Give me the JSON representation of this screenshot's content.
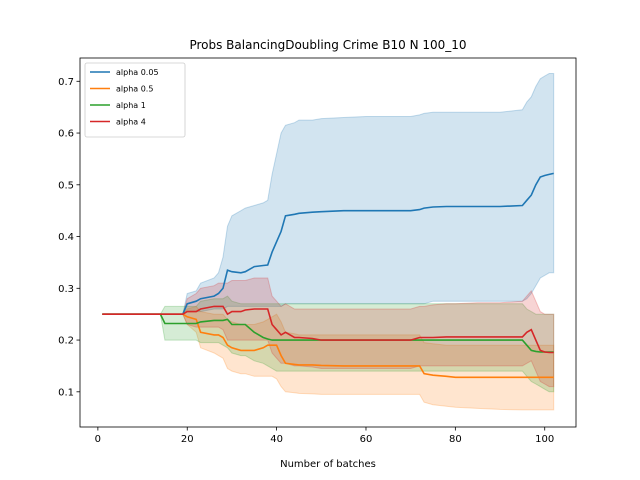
{
  "chart_data": {
    "type": "line",
    "title": "Probs BalancingDoubling Crime B10 N 100_10",
    "xlabel": "Number of batches",
    "ylabel": "",
    "xlim": [
      -4,
      107
    ],
    "ylim": [
      0.032,
      0.745
    ],
    "xticks": [
      0,
      20,
      40,
      60,
      80,
      100
    ],
    "yticks": [
      0.1,
      0.2,
      0.3,
      0.4,
      0.5,
      0.6,
      0.7
    ],
    "legend_position": "top-left",
    "x": [
      1,
      14,
      15,
      19,
      20,
      22,
      23,
      26,
      27,
      28,
      29,
      30,
      32,
      33,
      35,
      37,
      38,
      39,
      40,
      41,
      42,
      44,
      45,
      48,
      50,
      55,
      60,
      70,
      72,
      73,
      75,
      78,
      80,
      85,
      90,
      95,
      96,
      97,
      98,
      99,
      100,
      101,
      102
    ],
    "series": [
      {
        "name": "alpha 0.05",
        "color": "#1f77b4",
        "values": [
          0.25,
          0.25,
          0.25,
          0.25,
          0.27,
          0.275,
          0.28,
          0.285,
          0.29,
          0.3,
          0.335,
          0.332,
          0.33,
          0.332,
          0.342,
          0.344,
          0.345,
          0.37,
          0.39,
          0.41,
          0.44,
          0.443,
          0.445,
          0.447,
          0.448,
          0.45,
          0.45,
          0.45,
          0.452,
          0.455,
          0.457,
          0.458,
          0.458,
          0.458,
          0.458,
          0.46,
          0.47,
          0.48,
          0.5,
          0.515,
          0.518,
          0.52,
          0.522
        ],
        "lower": [
          0.25,
          0.25,
          0.25,
          0.25,
          0.255,
          0.255,
          0.255,
          0.26,
          0.26,
          0.26,
          0.265,
          0.265,
          0.265,
          0.265,
          0.265,
          0.265,
          0.265,
          0.265,
          0.265,
          0.265,
          0.27,
          0.27,
          0.27,
          0.27,
          0.27,
          0.27,
          0.27,
          0.27,
          0.27,
          0.27,
          0.275,
          0.275,
          0.275,
          0.275,
          0.275,
          0.275,
          0.28,
          0.29,
          0.305,
          0.32,
          0.325,
          0.33,
          0.33
        ],
        "upper": [
          0.25,
          0.25,
          0.25,
          0.25,
          0.29,
          0.295,
          0.31,
          0.32,
          0.33,
          0.36,
          0.42,
          0.44,
          0.45,
          0.455,
          0.46,
          0.465,
          0.47,
          0.52,
          0.56,
          0.6,
          0.615,
          0.62,
          0.625,
          0.625,
          0.628,
          0.63,
          0.632,
          0.632,
          0.635,
          0.638,
          0.64,
          0.64,
          0.64,
          0.64,
          0.64,
          0.645,
          0.66,
          0.67,
          0.69,
          0.705,
          0.71,
          0.715,
          0.715
        ]
      },
      {
        "name": "alpha 0.5",
        "color": "#ff7f0e",
        "values": [
          0.25,
          0.25,
          0.25,
          0.25,
          0.245,
          0.24,
          0.215,
          0.21,
          0.21,
          0.205,
          0.19,
          0.185,
          0.18,
          0.18,
          0.18,
          0.185,
          0.19,
          0.19,
          0.19,
          0.17,
          0.155,
          0.153,
          0.152,
          0.152,
          0.151,
          0.15,
          0.15,
          0.15,
          0.15,
          0.135,
          0.132,
          0.13,
          0.128,
          0.128,
          0.128,
          0.128,
          0.128,
          0.128,
          0.128,
          0.128,
          0.128,
          0.128,
          0.128
        ],
        "lower": [
          0.25,
          0.25,
          0.25,
          0.25,
          0.23,
          0.215,
          0.185,
          0.175,
          0.17,
          0.165,
          0.145,
          0.14,
          0.135,
          0.135,
          0.13,
          0.13,
          0.13,
          0.13,
          0.125,
          0.11,
          0.1,
          0.098,
          0.097,
          0.096,
          0.095,
          0.095,
          0.095,
          0.095,
          0.095,
          0.08,
          0.075,
          0.072,
          0.07,
          0.068,
          0.066,
          0.065,
          0.065,
          0.065,
          0.065,
          0.065,
          0.065,
          0.065,
          0.065
        ],
        "upper": [
          0.25,
          0.25,
          0.25,
          0.25,
          0.26,
          0.265,
          0.255,
          0.25,
          0.25,
          0.25,
          0.24,
          0.235,
          0.23,
          0.23,
          0.23,
          0.235,
          0.24,
          0.245,
          0.25,
          0.235,
          0.215,
          0.212,
          0.21,
          0.21,
          0.21,
          0.21,
          0.21,
          0.21,
          0.21,
          0.195,
          0.193,
          0.19,
          0.19,
          0.19,
          0.19,
          0.19,
          0.19,
          0.19,
          0.19,
          0.19,
          0.19,
          0.19,
          0.19
        ]
      },
      {
        "name": "alpha 1",
        "color": "#2ca02c",
        "values": [
          0.25,
          0.25,
          0.232,
          0.232,
          0.232,
          0.232,
          0.235,
          0.238,
          0.238,
          0.238,
          0.24,
          0.23,
          0.23,
          0.23,
          0.215,
          0.205,
          0.202,
          0.2,
          0.2,
          0.2,
          0.2,
          0.2,
          0.2,
          0.2,
          0.2,
          0.2,
          0.2,
          0.2,
          0.2,
          0.2,
          0.2,
          0.2,
          0.2,
          0.2,
          0.2,
          0.2,
          0.19,
          0.18,
          0.178,
          0.177,
          0.177,
          0.177,
          0.177
        ],
        "lower": [
          0.25,
          0.25,
          0.2,
          0.2,
          0.2,
          0.2,
          0.195,
          0.195,
          0.195,
          0.19,
          0.185,
          0.175,
          0.17,
          0.17,
          0.16,
          0.155,
          0.15,
          0.145,
          0.14,
          0.14,
          0.14,
          0.14,
          0.14,
          0.14,
          0.14,
          0.14,
          0.14,
          0.14,
          0.14,
          0.14,
          0.14,
          0.14,
          0.14,
          0.14,
          0.14,
          0.14,
          0.13,
          0.12,
          0.115,
          0.11,
          0.105,
          0.1,
          0.1
        ],
        "upper": [
          0.25,
          0.25,
          0.265,
          0.265,
          0.265,
          0.265,
          0.275,
          0.28,
          0.28,
          0.28,
          0.285,
          0.275,
          0.27,
          0.27,
          0.27,
          0.27,
          0.27,
          0.27,
          0.27,
          0.27,
          0.27,
          0.27,
          0.27,
          0.27,
          0.27,
          0.27,
          0.27,
          0.27,
          0.27,
          0.27,
          0.27,
          0.27,
          0.27,
          0.27,
          0.27,
          0.27,
          0.26,
          0.255,
          0.25,
          0.25,
          0.25,
          0.25,
          0.25
        ]
      },
      {
        "name": "alpha 4",
        "color": "#d62728",
        "values": [
          0.25,
          0.25,
          0.25,
          0.25,
          0.255,
          0.255,
          0.26,
          0.265,
          0.265,
          0.265,
          0.25,
          0.255,
          0.255,
          0.258,
          0.26,
          0.26,
          0.26,
          0.23,
          0.22,
          0.21,
          0.215,
          0.205,
          0.205,
          0.203,
          0.2,
          0.2,
          0.2,
          0.2,
          0.205,
          0.205,
          0.205,
          0.206,
          0.206,
          0.206,
          0.206,
          0.206,
          0.215,
          0.22,
          0.2,
          0.18,
          0.177,
          0.176,
          0.176
        ],
        "lower": [
          0.25,
          0.25,
          0.25,
          0.25,
          0.23,
          0.225,
          0.225,
          0.225,
          0.225,
          0.22,
          0.2,
          0.2,
          0.2,
          0.2,
          0.2,
          0.2,
          0.2,
          0.175,
          0.165,
          0.155,
          0.155,
          0.15,
          0.15,
          0.148,
          0.145,
          0.145,
          0.145,
          0.145,
          0.15,
          0.15,
          0.15,
          0.15,
          0.15,
          0.15,
          0.15,
          0.15,
          0.155,
          0.16,
          0.14,
          0.12,
          0.115,
          0.11,
          0.11
        ],
        "upper": [
          0.25,
          0.25,
          0.25,
          0.25,
          0.28,
          0.29,
          0.3,
          0.305,
          0.31,
          0.31,
          0.31,
          0.315,
          0.315,
          0.315,
          0.32,
          0.32,
          0.32,
          0.285,
          0.275,
          0.265,
          0.27,
          0.26,
          0.26,
          0.26,
          0.26,
          0.26,
          0.26,
          0.26,
          0.265,
          0.265,
          0.268,
          0.27,
          0.27,
          0.272,
          0.272,
          0.275,
          0.285,
          0.295,
          0.275,
          0.255,
          0.25,
          0.25,
          0.25
        ]
      }
    ]
  }
}
